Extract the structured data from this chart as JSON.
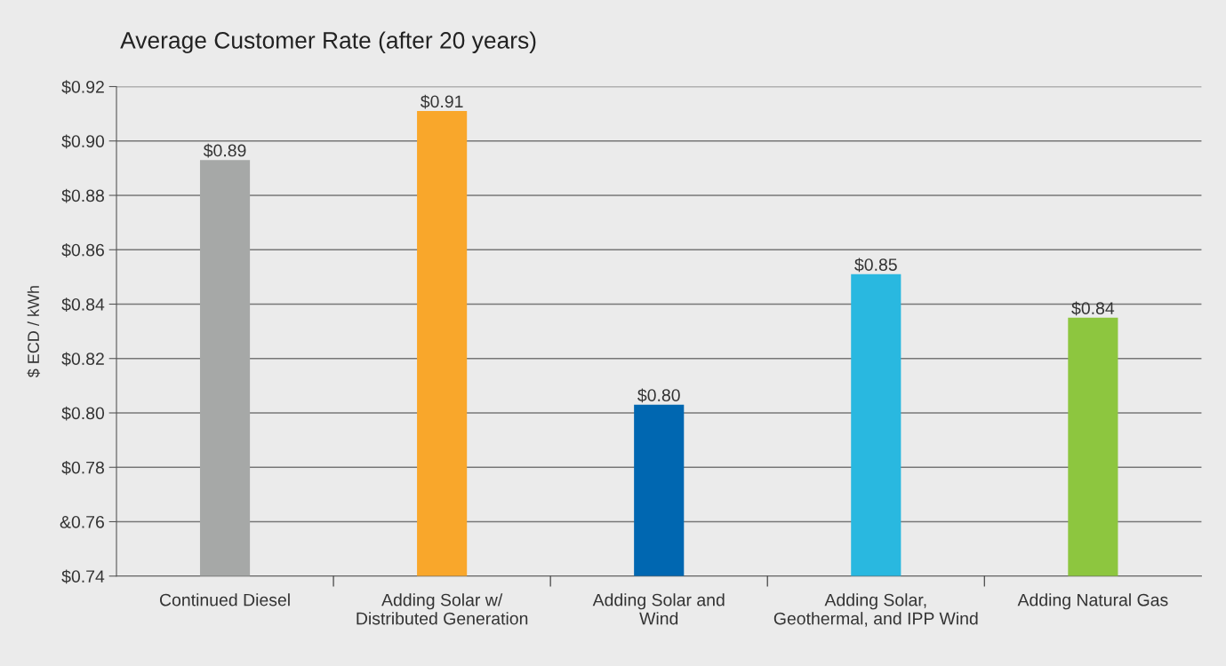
{
  "chart_data": {
    "type": "bar",
    "title": "Average Customer Rate (after 20 years)",
    "ylabel": "$ ECD / kWh",
    "categories": [
      "Continued Diesel",
      "Adding Solar w/\nDistributed Generation",
      "Adding Solar and\nWind",
      "Adding Solar,\nGeothermal, and IPP Wind",
      "Adding Natural Gas"
    ],
    "values": [
      0.893,
      0.911,
      0.803,
      0.851,
      0.835
    ],
    "colors": [
      "#a6a8a7",
      "#f9a72b",
      "#0067b1",
      "#29b8e0",
      "#8dc63f"
    ],
    "value_labels": [
      "$0.89",
      "$0.91",
      "$0.80",
      "$0.85",
      "$0.84"
    ],
    "ylim": [
      0.74,
      0.92
    ],
    "yticks": [
      {
        "value": 0.74,
        "label": "$0.74"
      },
      {
        "value": 0.76,
        "label": "&0.76"
      },
      {
        "value": 0.78,
        "label": "$0.78"
      },
      {
        "value": 0.8,
        "label": "$0.80"
      },
      {
        "value": 0.82,
        "label": "$0.82"
      },
      {
        "value": 0.84,
        "label": "$0.84"
      },
      {
        "value": 0.86,
        "label": "$0.86"
      },
      {
        "value": 0.88,
        "label": "$0.88"
      },
      {
        "value": 0.9,
        "label": "$0.90"
      },
      {
        "value": 0.92,
        "label": "$0.92"
      }
    ],
    "grid": "y"
  }
}
